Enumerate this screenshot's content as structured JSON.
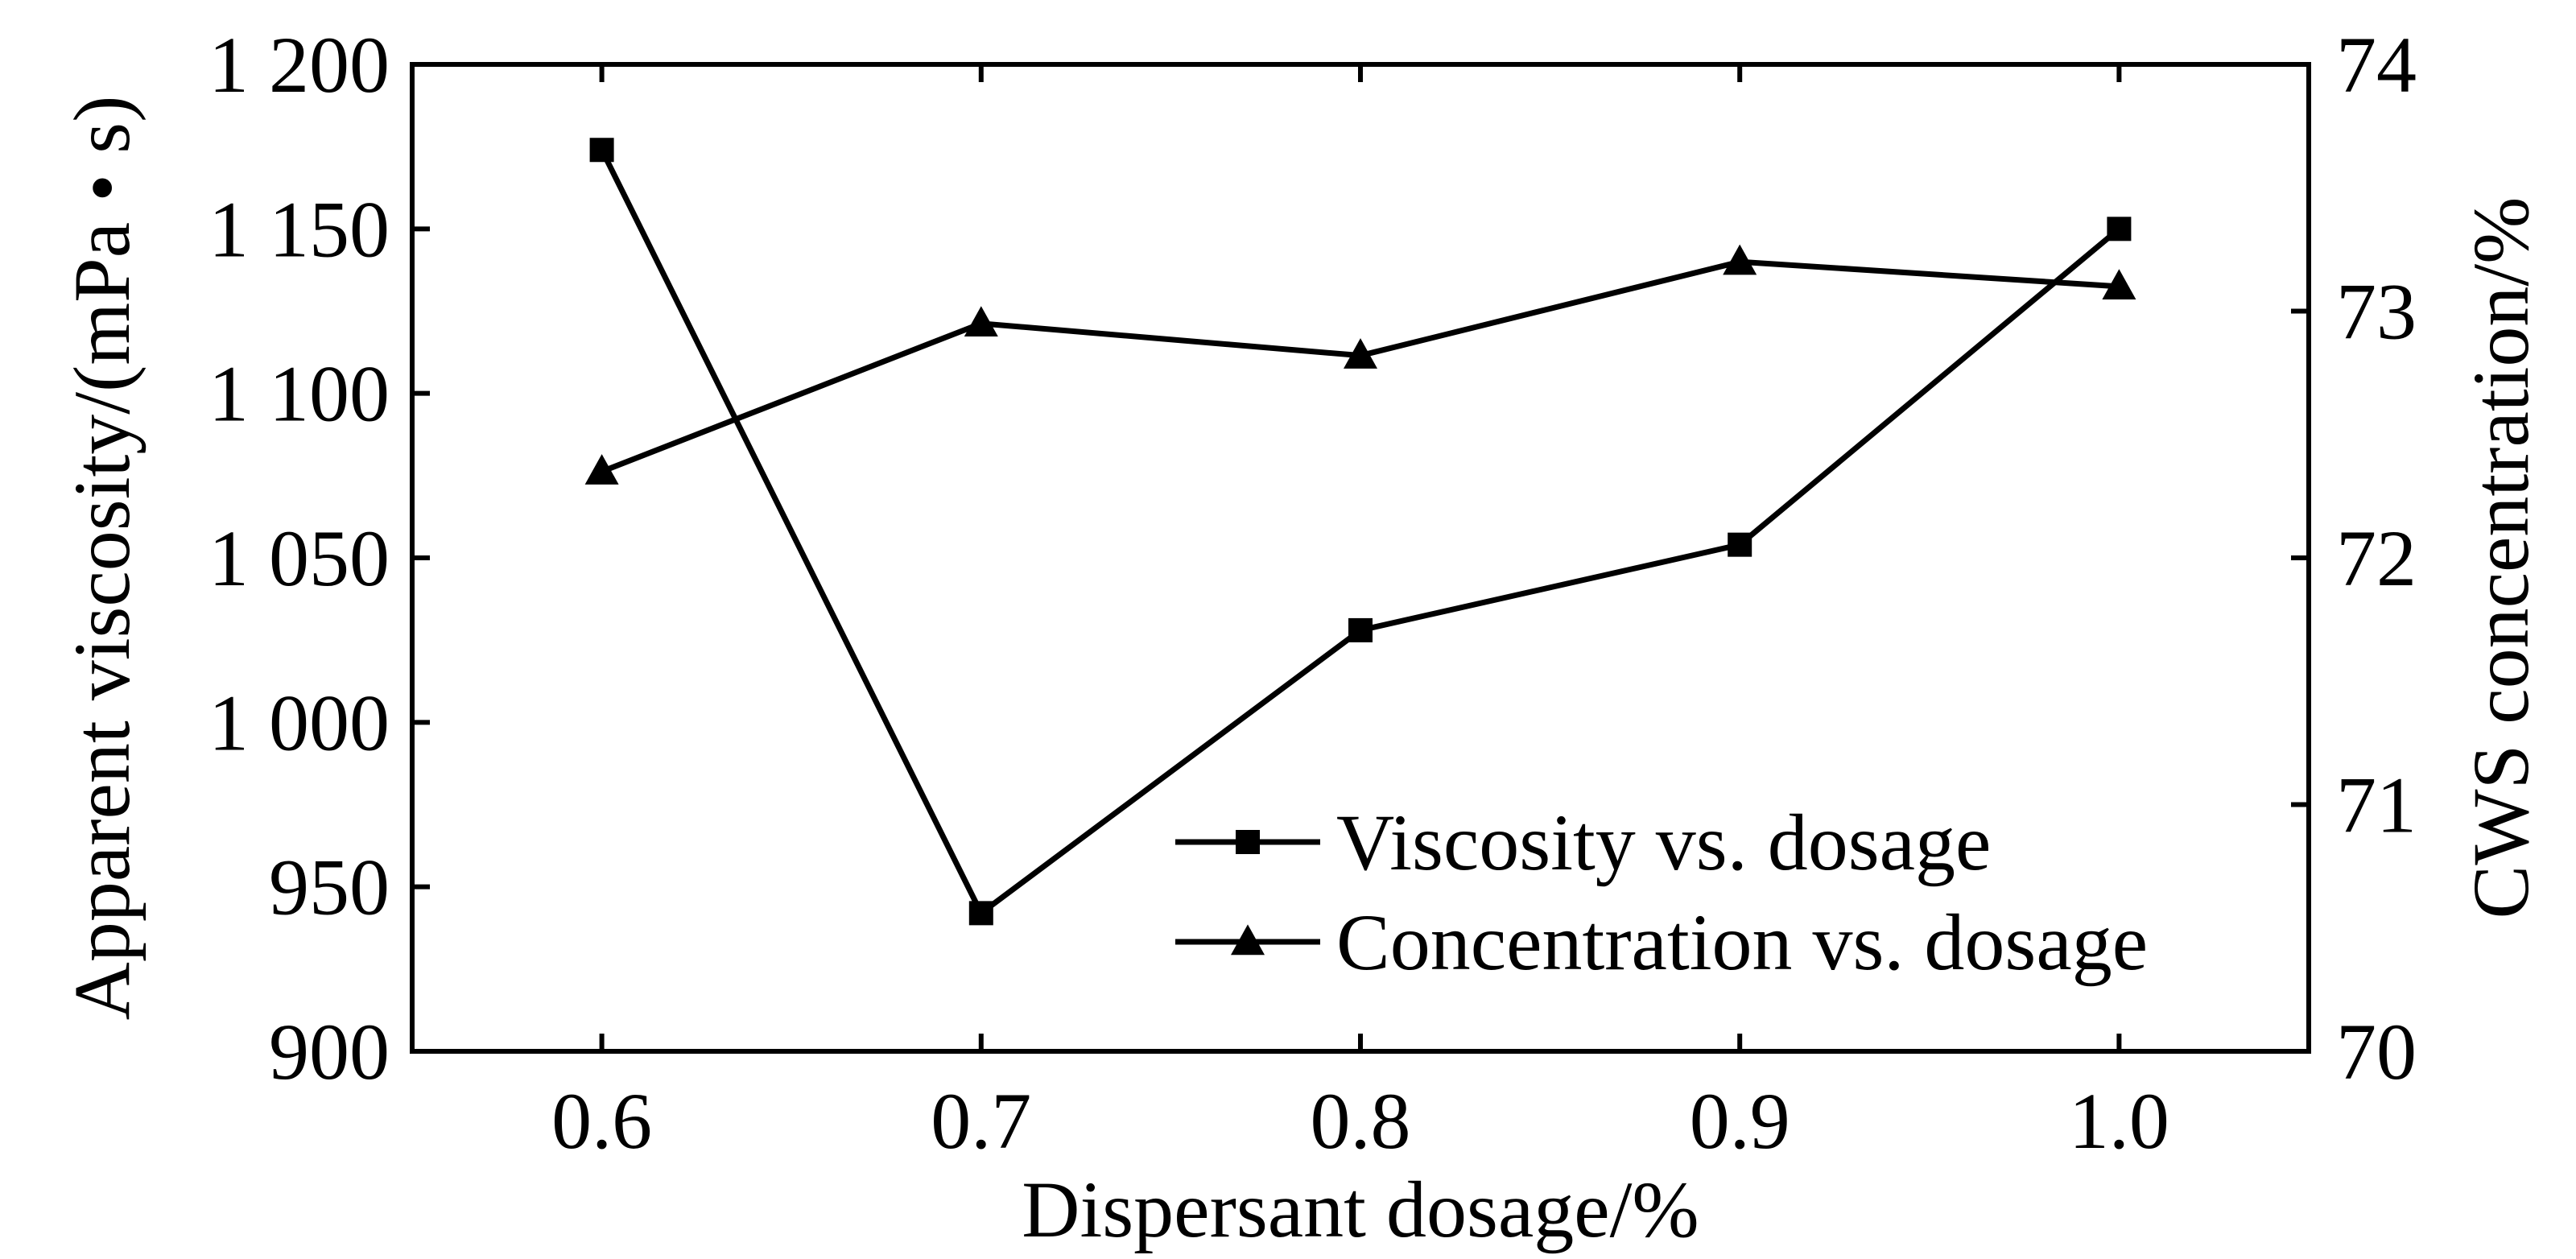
{
  "chart_data": {
    "type": "line",
    "title": "",
    "x": [
      0.6,
      0.7,
      0.8,
      0.9,
      1.0
    ],
    "x_tick_labels": [
      "0.6",
      "0.7",
      "0.8",
      "0.9",
      "1.0"
    ],
    "xlabel": "Dispersant dosage/%",
    "xlim": [
      0.55,
      1.05
    ],
    "ylabel_left": "Apparent viscosity/(mPa • s)",
    "ylim_left": [
      900,
      1200
    ],
    "y_left_tick_values": [
      900,
      950,
      1000,
      1050,
      1100,
      1150,
      1200
    ],
    "y_left_tick_labels": [
      "900",
      "950",
      "1 000",
      "1 050",
      "1 100",
      "1 150",
      "1 200"
    ],
    "ylabel_right": "CWS concentration/%",
    "ylim_right": [
      70,
      74
    ],
    "y_right_tick_values": [
      70,
      71,
      72,
      73,
      74
    ],
    "y_right_tick_labels": [
      "70",
      "71",
      "72",
      "73",
      "74"
    ],
    "grid": false,
    "legend_position": "bottom-right",
    "series": [
      {
        "name": "Viscosity vs. dosage",
        "axis": "left",
        "marker": "square",
        "color": "#000000",
        "values": [
          1174,
          942,
          1028,
          1054,
          1150
        ]
      },
      {
        "name": "Concentration vs. dosage",
        "axis": "right",
        "marker": "triangle",
        "color": "#000000",
        "values": [
          72.35,
          72.95,
          72.82,
          73.2,
          73.1
        ]
      }
    ]
  }
}
